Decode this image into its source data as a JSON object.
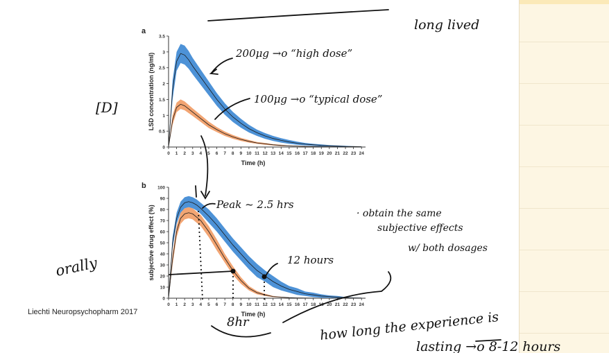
{
  "citation": "Liechti Neuropsychopharm 2017",
  "annotations": {
    "top_right": "long lived",
    "bracket": "[D]",
    "high_dose": "200μg →o “high dose”",
    "typical_dose": "100μg →o “typical dose”",
    "peak": "Peak ~ 2.5 hrs",
    "twelve": "12 hours",
    "note1": "· obtain the same",
    "note2": "subjective effects",
    "note3": "w/ both dosages",
    "orally": "orally",
    "eight": "8hr",
    "lasting1": "how long the experience is",
    "lasting2": "lasting →o 8-12 hours"
  },
  "chart_data": [
    {
      "panel": "a",
      "type": "area",
      "ylabel": "LSD concentration (ng/ml)",
      "xlabel": "Time (h)",
      "xlim": [
        0,
        24.5
      ],
      "ylim": [
        0,
        3.5
      ],
      "xticks": [
        0,
        1,
        2,
        3,
        4,
        5,
        6,
        7,
        8,
        9,
        10,
        11,
        12,
        13,
        14,
        15,
        16,
        17,
        18,
        19,
        20,
        21,
        22,
        23,
        24
      ],
      "yticks": [
        0,
        0.5,
        1,
        1.5,
        2,
        2.5,
        3,
        3.5
      ],
      "series": [
        {
          "color": "#2e7fd0",
          "x": [
            0,
            0.5,
            1,
            1.5,
            2,
            2.5,
            3,
            4,
            5,
            6,
            7,
            8,
            9,
            10,
            11,
            12,
            13,
            14,
            15,
            16,
            17,
            18,
            19,
            20,
            21,
            22,
            23,
            24
          ],
          "mean": [
            0,
            1.8,
            2.7,
            2.95,
            2.9,
            2.75,
            2.55,
            2.2,
            1.85,
            1.5,
            1.2,
            0.95,
            0.75,
            0.58,
            0.45,
            0.35,
            0.27,
            0.21,
            0.16,
            0.12,
            0.09,
            0.07,
            0.05,
            0.04,
            0.03,
            0.02,
            0.015,
            0.01
          ],
          "band": [
            0,
            0.3,
            0.3,
            0.3,
            0.3,
            0.28,
            0.26,
            0.24,
            0.22,
            0.2,
            0.18,
            0.16,
            0.14,
            0.12,
            0.1,
            0.09,
            0.08,
            0.07,
            0.06,
            0.05,
            0.04,
            0.03,
            0.03,
            0.02,
            0.02,
            0.02,
            0.01,
            0.01
          ]
        },
        {
          "color": "#f0955a",
          "x": [
            0,
            0.5,
            1,
            1.5,
            2,
            2.5,
            3,
            4,
            5,
            6,
            7,
            8,
            9,
            10,
            11,
            12,
            13,
            14,
            15,
            16,
            17,
            18,
            19,
            20,
            21,
            22,
            23,
            24
          ],
          "mean": [
            0,
            0.85,
            1.25,
            1.35,
            1.3,
            1.2,
            1.1,
            0.9,
            0.7,
            0.55,
            0.42,
            0.32,
            0.24,
            0.18,
            0.13,
            0.1,
            0.07,
            0.05,
            0.04,
            0.03,
            0.02,
            0.015,
            0.01,
            0.008,
            0.006,
            0.005,
            0.004,
            0.003
          ],
          "band": [
            0,
            0.15,
            0.15,
            0.15,
            0.14,
            0.13,
            0.12,
            0.11,
            0.1,
            0.08,
            0.07,
            0.06,
            0.05,
            0.04,
            0.03,
            0.03,
            0.02,
            0.02,
            0.01,
            0.01,
            0.01,
            0.01,
            0.01,
            0.005,
            0.005,
            0.005,
            0.003,
            0.003
          ]
        }
      ]
    },
    {
      "panel": "b",
      "type": "area",
      "ylabel": "subjective drug effect (%)",
      "xlabel": "Time (h)",
      "xlim": [
        0,
        24.5
      ],
      "ylim": [
        0,
        100
      ],
      "xticks": [
        0,
        1,
        2,
        3,
        4,
        5,
        6,
        7,
        8,
        9,
        10,
        11,
        12,
        13,
        14,
        15,
        16,
        17,
        18,
        19,
        20,
        21,
        22,
        23,
        24
      ],
      "yticks": [
        0,
        10,
        20,
        30,
        40,
        50,
        60,
        70,
        80,
        90,
        100
      ],
      "series": [
        {
          "color": "#2e7fd0",
          "x": [
            0,
            0.5,
            1,
            1.5,
            2,
            2.5,
            3,
            3.5,
            4,
            5,
            6,
            7,
            8,
            9,
            10,
            11,
            12,
            13,
            14,
            15,
            16,
            17,
            18,
            19,
            20,
            21,
            22,
            23,
            24
          ],
          "mean": [
            0,
            50,
            72,
            82,
            86,
            87,
            86,
            84,
            81,
            74,
            66,
            57,
            48,
            40,
            32,
            25,
            20,
            15,
            11,
            8,
            6,
            4,
            3,
            2,
            1.5,
            1,
            0.5,
            0.3,
            0.2
          ],
          "band": [
            0,
            5,
            5,
            5,
            5,
            5,
            5,
            5,
            5,
            6,
            6,
            6,
            6,
            6,
            6,
            6,
            5,
            5,
            4,
            3,
            3,
            2,
            2,
            1.5,
            1,
            1,
            0.5,
            0.3,
            0.2
          ]
        },
        {
          "color": "#f0955a",
          "x": [
            0,
            0.5,
            1,
            1.5,
            2,
            2.5,
            3,
            3.5,
            4,
            5,
            6,
            7,
            8,
            9,
            10,
            11,
            12,
            13,
            14,
            15,
            16,
            17,
            18,
            19,
            20,
            21,
            22,
            23,
            24
          ],
          "mean": [
            0,
            35,
            60,
            72,
            76,
            77,
            76,
            73,
            70,
            60,
            48,
            36,
            25,
            16,
            9,
            5,
            3,
            1.5,
            1,
            0.5,
            0.3,
            0.2,
            0.1,
            0,
            0,
            0,
            0,
            0,
            0
          ],
          "band": [
            0,
            5,
            5,
            5,
            5,
            5,
            5,
            5,
            5,
            5,
            5,
            4,
            4,
            3,
            2,
            1.5,
            1,
            0.5,
            0.3,
            0.2,
            0.1,
            0.1,
            0,
            0,
            0,
            0,
            0,
            0,
            0
          ]
        }
      ]
    }
  ]
}
